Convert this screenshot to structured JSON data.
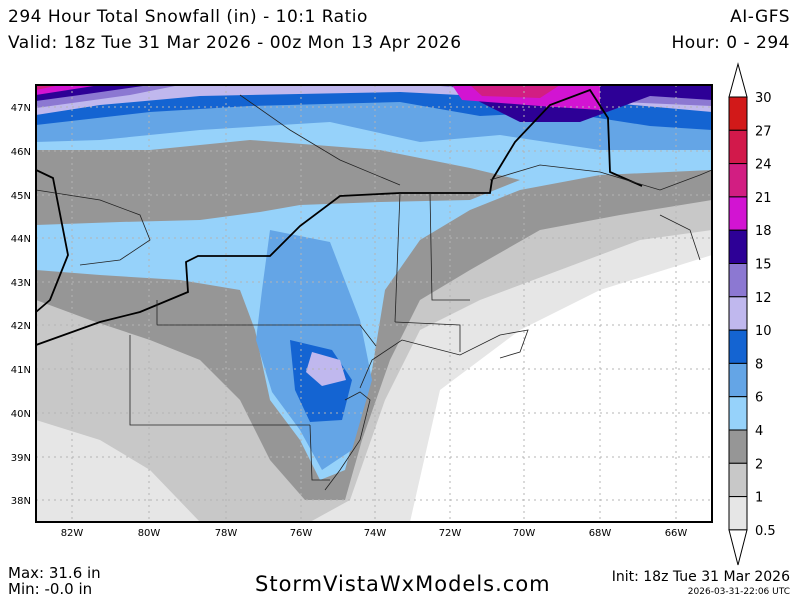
{
  "header": {
    "title": "294 Hour Total Snowfall (in) - 10:1 Ratio",
    "model": "AI-GFS",
    "valid": "Valid: 18z Tue 31 Mar 2026 - 00z Mon 13 Apr 2026",
    "hours": "Hour: 0 - 294"
  },
  "map": {
    "lon_labels": [
      "82W",
      "80W",
      "78W",
      "76W",
      "74W",
      "72W",
      "70W",
      "68W",
      "66W"
    ],
    "lat_labels": [
      "47N",
      "46N",
      "45N",
      "44N",
      "43N",
      "42N",
      "41N",
      "40N",
      "39N",
      "38N"
    ]
  },
  "colorbar": {
    "units": "in",
    "levels": [
      "30",
      "27",
      "24",
      "21",
      "18",
      "15",
      "12",
      "10",
      "8",
      "6",
      "4",
      "2",
      "1",
      "0.5"
    ],
    "colors": [
      "#d21919",
      "#d2194b",
      "#d21e82",
      "#d214d2",
      "#2d0096",
      "#8c78d2",
      "#c0b8ee",
      "#1464d2",
      "#64a5e6",
      "#96d2fa",
      "#969696",
      "#c8c8c8",
      "#e6e6e6"
    ]
  },
  "footer": {
    "max": "Max: 31.6 in",
    "min": "Min: -0.0 in",
    "website": "StormVistaWxModels.com",
    "init": "Init: 18z Tue 31 Mar 2026",
    "timestamp": "2026-03-31-22:06 UTC"
  }
}
